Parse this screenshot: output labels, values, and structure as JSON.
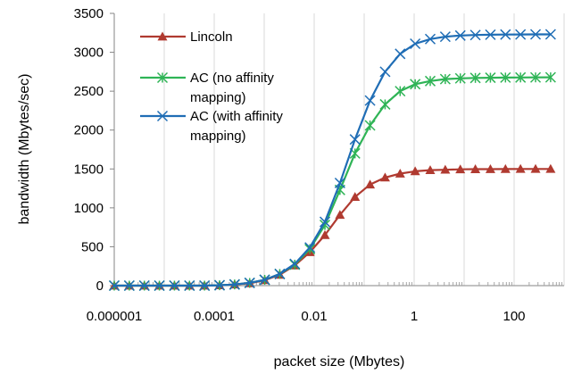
{
  "chart_data": {
    "type": "line",
    "title": "",
    "xlabel": "packet size (Mbytes)",
    "ylabel": "bandwidth (Mbytes/sec)",
    "x_scale": "log",
    "xlim": [
      1e-06,
      1000
    ],
    "ylim": [
      0,
      3500
    ],
    "x_ticks": [
      {
        "value": 1e-06,
        "label": "0.000001"
      },
      {
        "value": 0.0001,
        "label": "0.0001"
      },
      {
        "value": 0.01,
        "label": "0.01"
      },
      {
        "value": 1,
        "label": "1"
      },
      {
        "value": 100,
        "label": "100"
      }
    ],
    "y_ticks": [
      {
        "value": 0,
        "label": "0"
      },
      {
        "value": 500,
        "label": "500"
      },
      {
        "value": 1000,
        "label": "1000"
      },
      {
        "value": 1500,
        "label": "1500"
      },
      {
        "value": 2000,
        "label": "2000"
      },
      {
        "value": 2500,
        "label": "2500"
      },
      {
        "value": 3000,
        "label": "3000"
      },
      {
        "value": 3500,
        "label": "3500"
      }
    ],
    "grid": "vertical",
    "legend_position": "top-left",
    "x": [
      1e-06,
      2e-06,
      4e-06,
      8e-06,
      1.6e-05,
      3.2e-05,
      6.4e-05,
      0.000128,
      0.000256,
      0.000512,
      0.001024,
      0.002048,
      0.004096,
      0.008192,
      0.016384,
      0.032768,
      0.065536,
      0.131072,
      0.262144,
      0.524288,
      1.048576,
      2.097152,
      4.194304,
      8.388608,
      16.777216,
      33.554432,
      67.108864,
      134.217728,
      268.435456,
      536.870912
    ],
    "series": [
      {
        "name": "Lincoln",
        "color": "#b03a30",
        "marker": "triangle",
        "values": [
          0,
          0,
          0,
          0,
          0,
          0,
          0,
          5,
          15,
          30,
          70,
          140,
          260,
          430,
          650,
          910,
          1140,
          1300,
          1390,
          1440,
          1470,
          1485,
          1490,
          1495,
          1497,
          1498,
          1499,
          1500,
          1500,
          1500
        ]
      },
      {
        "name": "AC (no affinity mapping)",
        "color": "#2fb456",
        "marker": "star",
        "values": [
          0,
          0,
          0,
          0,
          0,
          0,
          0,
          5,
          15,
          35,
          75,
          150,
          270,
          470,
          780,
          1230,
          1700,
          2060,
          2330,
          2500,
          2590,
          2630,
          2655,
          2665,
          2670,
          2673,
          2675,
          2676,
          2677,
          2678
        ]
      },
      {
        "name": "AC (with affinity mapping)",
        "color": "#1f6db5",
        "marker": "x",
        "values": [
          0,
          0,
          0,
          0,
          0,
          0,
          0,
          5,
          15,
          35,
          75,
          150,
          280,
          490,
          820,
          1320,
          1880,
          2380,
          2750,
          2980,
          3110,
          3170,
          3200,
          3215,
          3222,
          3226,
          3228,
          3229,
          3230,
          3230
        ]
      }
    ]
  }
}
